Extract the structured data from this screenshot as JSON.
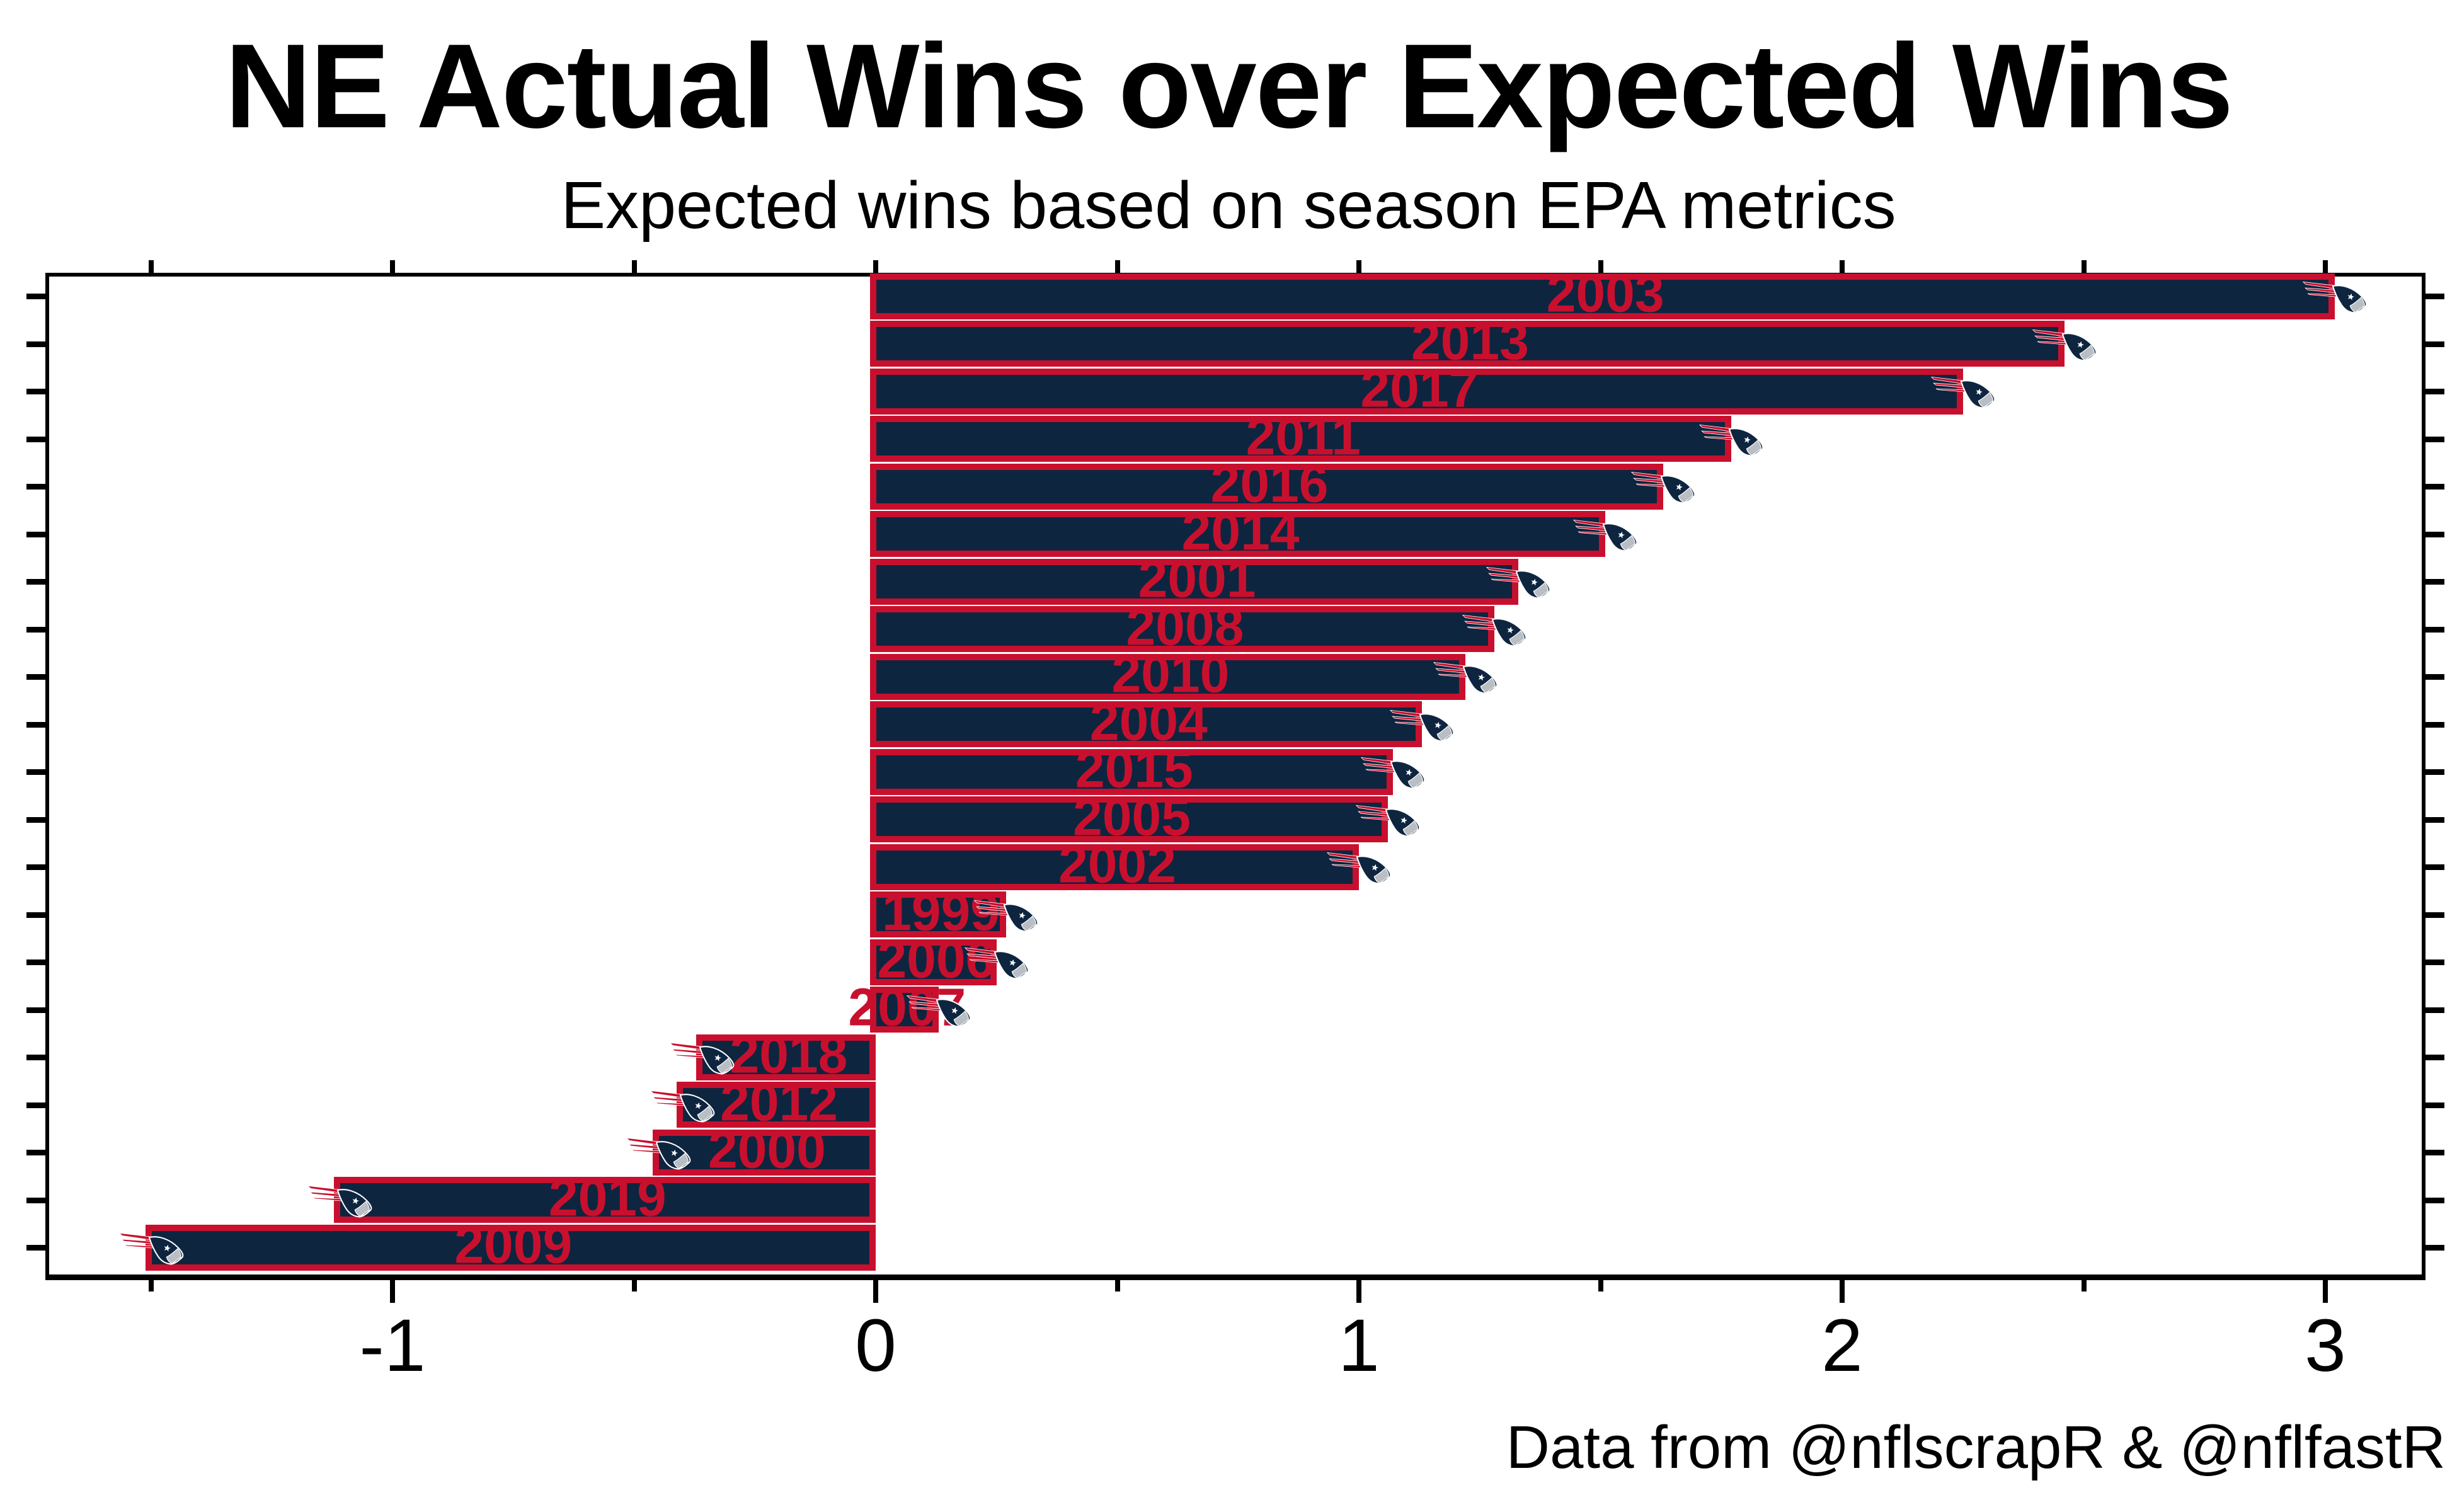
{
  "header": {
    "title": "NE Actual Wins over Expected Wins",
    "subtitle": "Expected wins based on season EPA metrics"
  },
  "caption": "Data from @nflscrapR & @nflfastR",
  "colors": {
    "bar_fill_navy": "#0E2540",
    "bar_outline_red": "#C8102E",
    "label_red": "#C8102E",
    "axis_black": "#000000",
    "background": "#FFFFFF",
    "logo_silver": "#B9BEC4"
  },
  "icons": {
    "bar_end_icon": "patriots-flying-elvis-logo"
  },
  "chart_data": {
    "type": "bar",
    "orientation": "horizontal",
    "title": "NE Actual Wins over Expected Wins",
    "subtitle": "Expected wins based on season EPA metrics",
    "caption": "Data from @nflscrapR & @nflfastR",
    "xlabel": "",
    "ylabel": "",
    "grid": false,
    "legend": "none",
    "xlim": [
      -1.72,
      3.21
    ],
    "categories": [
      "2003",
      "2013",
      "2017",
      "2011",
      "2016",
      "2014",
      "2001",
      "2008",
      "2010",
      "2004",
      "2015",
      "2005",
      "2002",
      "1999",
      "2006",
      "2007",
      "2018",
      "2012",
      "2000",
      "2019",
      "2009"
    ],
    "values": [
      3.02,
      2.46,
      2.25,
      1.77,
      1.63,
      1.51,
      1.33,
      1.28,
      1.22,
      1.13,
      1.07,
      1.06,
      1.0,
      0.27,
      0.25,
      0.13,
      -0.36,
      -0.4,
      -0.45,
      -1.11,
      -1.5
    ],
    "x_major_ticks": {
      "values": [
        -1,
        0,
        1,
        2,
        3
      ],
      "labels": [
        "-1",
        "0",
        "1",
        "2",
        "3"
      ]
    },
    "x_minor_ticks": [
      -1.5,
      -0.5,
      0.5,
      1.5,
      2.5
    ],
    "top_ticks": [
      -1.5,
      -1,
      -0.5,
      0,
      0.5,
      1,
      1.5,
      2,
      2.5,
      3
    ],
    "bar_labels_inside": true,
    "bar_label_color": "#C8102E",
    "bar_end_marker": "patriots-flying-elvis-logo"
  }
}
